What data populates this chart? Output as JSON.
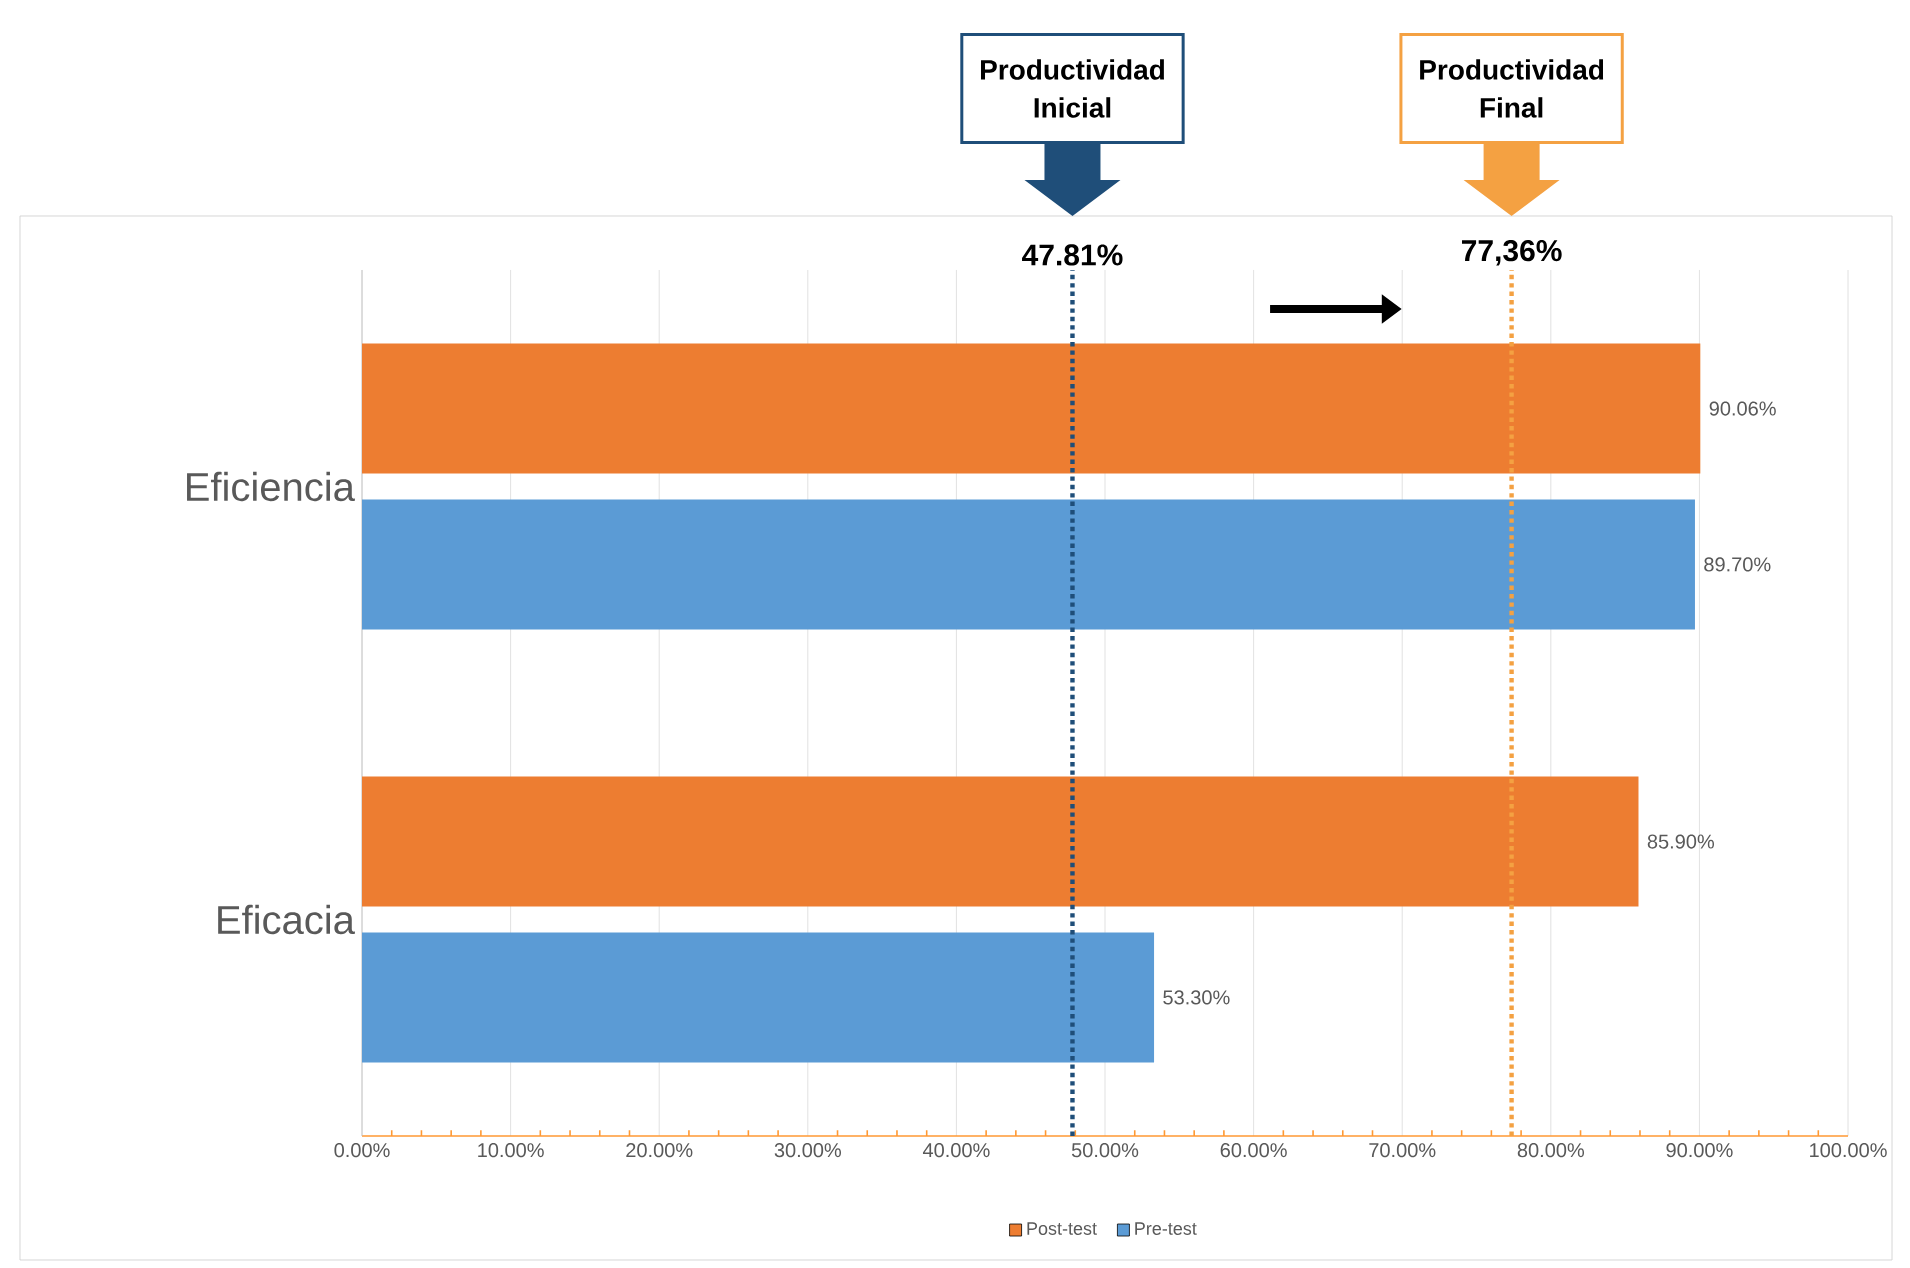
{
  "chart_data": {
    "type": "bar",
    "orientation": "horizontal",
    "categories": [
      "Eficiencia",
      "Eficacia"
    ],
    "series": [
      {
        "name": "Post-test",
        "color": "#ed7d31",
        "values": [
          90.06,
          85.9
        ],
        "value_labels": [
          "90.06%",
          "85.90%"
        ]
      },
      {
        "name": "Pre-test",
        "color": "#5b9bd5",
        "values": [
          89.7,
          53.3
        ],
        "value_labels": [
          "89.70%",
          "53.30%"
        ]
      }
    ],
    "xlim": [
      0,
      100
    ],
    "xticks": [
      {
        "value": 0,
        "label": "0.00%"
      },
      {
        "value": 10,
        "label": "10.00%"
      },
      {
        "value": 20,
        "label": "20.00%"
      },
      {
        "value": 30,
        "label": "30.00%"
      },
      {
        "value": 40,
        "label": "40.00%"
      },
      {
        "value": 50,
        "label": "50.00%"
      },
      {
        "value": 60,
        "label": "60.00%"
      },
      {
        "value": 70,
        "label": "70.00%"
      },
      {
        "value": 80,
        "label": "80.00%"
      },
      {
        "value": 90,
        "label": "90.00%"
      },
      {
        "value": 100,
        "label": "100.00%"
      }
    ],
    "grid": "x",
    "legend": "bottom",
    "ref_lines": [
      {
        "axis": "x",
        "value": 47.81,
        "label": "47.81%",
        "color": "#1f4e79",
        "line_style": "dotted"
      },
      {
        "axis": "x",
        "value": 77.36,
        "label": "77,36%",
        "color": "#f4a142",
        "line_style": "dotted"
      }
    ],
    "annotations": [
      "Productividad Inicial",
      "Productividad Final"
    ]
  }
}
